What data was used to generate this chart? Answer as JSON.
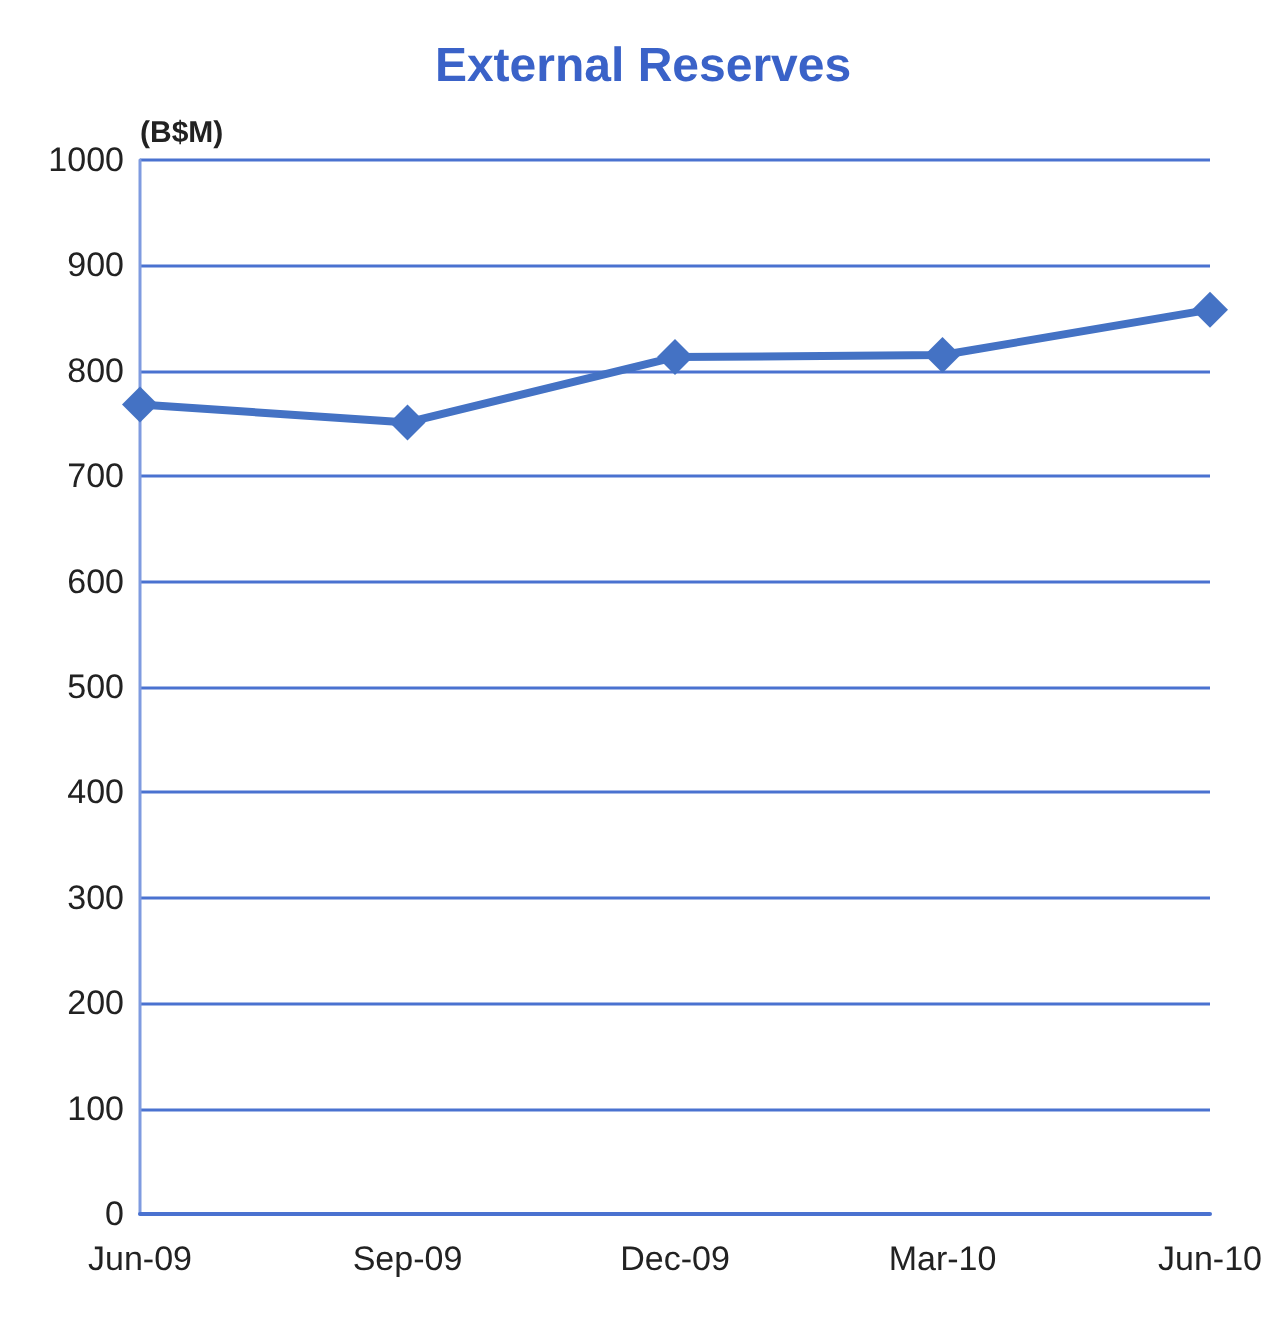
{
  "chart_data": {
    "type": "line",
    "title": "External Reserves",
    "ylabel": "(B$M)",
    "categories": [
      "Jun-09",
      "Sep-09",
      "Dec-09",
      "Mar-10",
      "Jun-10"
    ],
    "series": [
      {
        "color": "#4472c4",
        "values": [
          768,
          751,
          813,
          815,
          858
        ]
      }
    ],
    "ylim": [
      0,
      1000
    ],
    "yticks": [
      0,
      100,
      200,
      300,
      400,
      500,
      600,
      700,
      800,
      900,
      1000
    ],
    "grid": "y",
    "marker": "diamond",
    "line_style": "solid"
  }
}
